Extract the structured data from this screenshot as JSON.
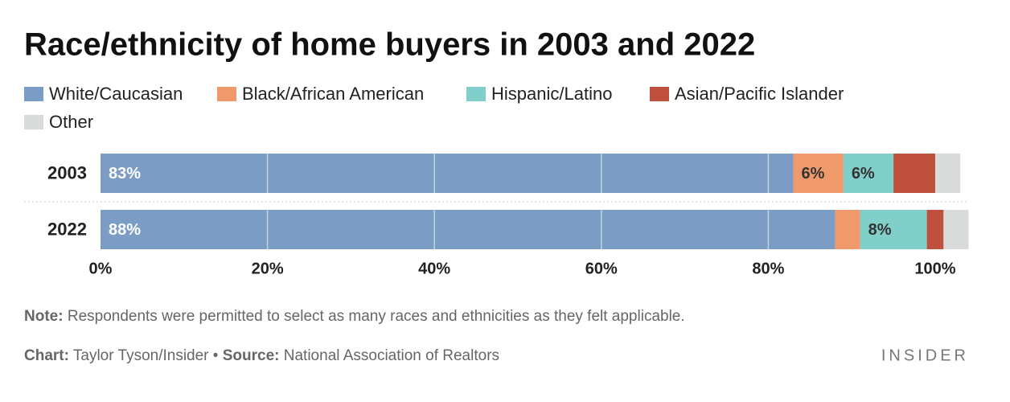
{
  "chart_data": {
    "type": "stacked-bar",
    "orientation": "horizontal",
    "title": "Race/ethnicity of home buyers in 2003 and 2022",
    "categories": [
      "2003",
      "2022"
    ],
    "series": [
      {
        "name": "White/Caucasian",
        "color": "#7b9cc4",
        "values": [
          83,
          88
        ],
        "value_labels": [
          "83%",
          "88%"
        ]
      },
      {
        "name": "Black/African American",
        "color": "#f0996b",
        "values": [
          6,
          3
        ],
        "value_labels": [
          "6%",
          null
        ]
      },
      {
        "name": "Hispanic/Latino",
        "color": "#80cfc9",
        "values": [
          6,
          8
        ],
        "value_labels": [
          "6%",
          "8%"
        ]
      },
      {
        "name": "Asian/Pacific Islander",
        "color": "#c0503e",
        "values": [
          5,
          2
        ]
      },
      {
        "name": "Other",
        "color": "#d9dbdb",
        "values": [
          3,
          3
        ]
      }
    ],
    "xlim": [
      0,
      100
    ],
    "xticks": [
      {
        "value": 0,
        "label": "0%"
      },
      {
        "value": 20,
        "label": "20%"
      },
      {
        "value": 40,
        "label": "40%"
      },
      {
        "value": 60,
        "label": "60%"
      },
      {
        "value": 80,
        "label": "80%"
      },
      {
        "value": 100,
        "label": "100%"
      }
    ],
    "grid": true,
    "note_label": "Note:",
    "note": "Respondents were permitted to select as many races and ethnicities as they felt applicable.",
    "chart_label": "Chart:",
    "chart_credit": "Taylor Tyson/Insider",
    "separator": "•",
    "source_label": "Source:",
    "source": "National Association of Realtors",
    "brand": "INSIDER"
  }
}
